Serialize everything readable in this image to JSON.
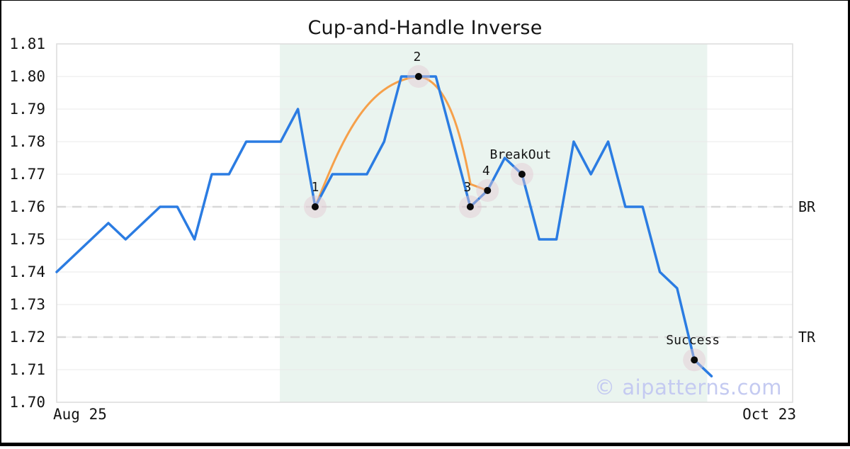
{
  "title": "Cup-and-Handle Inverse",
  "watermark": "© aipatterns.com",
  "colors": {
    "price_line": "#2b7ce2",
    "cup_curve": "#f6a04a",
    "marker_dot": "#0a0a0a",
    "marker_halo": "#e5c8d2",
    "shade": "#eaf4ef",
    "grid": "#e9e9e9",
    "spine": "#dcdcdc",
    "level_dash": "#d8d8d8",
    "text": "#141414",
    "watermark_color": "#c4caf1",
    "border": "#000000"
  },
  "chart_data": {
    "type": "line",
    "title": "Cup-and-Handle Inverse",
    "xlabel": "",
    "ylabel": "",
    "ylim": [
      1.7,
      1.81
    ],
    "ytick_step": 0.01,
    "yticks": [
      1.81,
      1.8,
      1.79,
      1.78,
      1.77,
      1.76,
      1.75,
      1.74,
      1.73,
      1.72,
      1.71,
      1.7
    ],
    "x_start_label": "Aug 25",
    "x_end_label": "Oct 23",
    "grid": "horizontal",
    "legend": "none",
    "values": [
      1.74,
      1.745,
      1.75,
      1.755,
      1.75,
      1.755,
      1.76,
      1.76,
      1.75,
      1.77,
      1.77,
      1.78,
      1.78,
      1.78,
      1.79,
      1.76,
      1.77,
      1.77,
      1.77,
      1.78,
      1.8,
      1.8,
      1.8,
      1.78,
      1.76,
      1.765,
      1.775,
      1.77,
      1.75,
      1.75,
      1.78,
      1.77,
      1.78,
      1.76,
      1.76,
      1.74,
      1.735,
      1.713,
      1.708
    ],
    "markers": [
      {
        "label": "1",
        "index": 15,
        "value": 1.76,
        "dx": 0
      },
      {
        "label": "2",
        "index": 21,
        "value": 1.8,
        "dx": -2
      },
      {
        "label": "3",
        "index": 24,
        "value": 1.76,
        "dx": -4
      },
      {
        "label": "4",
        "index": 25,
        "value": 1.765,
        "dx": -2
      },
      {
        "label": "BreakOut",
        "index": 27,
        "value": 1.77,
        "dx": -2
      },
      {
        "label": "Success",
        "index": 37,
        "value": 1.713,
        "dx": -2
      }
    ],
    "levels": [
      {
        "label": "BR",
        "value": 1.76
      },
      {
        "label": "TR",
        "value": 1.72
      }
    ],
    "shaded_region": {
      "from_index": 12.95,
      "to_index": 37.75
    },
    "cup_curve_anchor_labels": [
      "1",
      "2",
      "4"
    ]
  }
}
